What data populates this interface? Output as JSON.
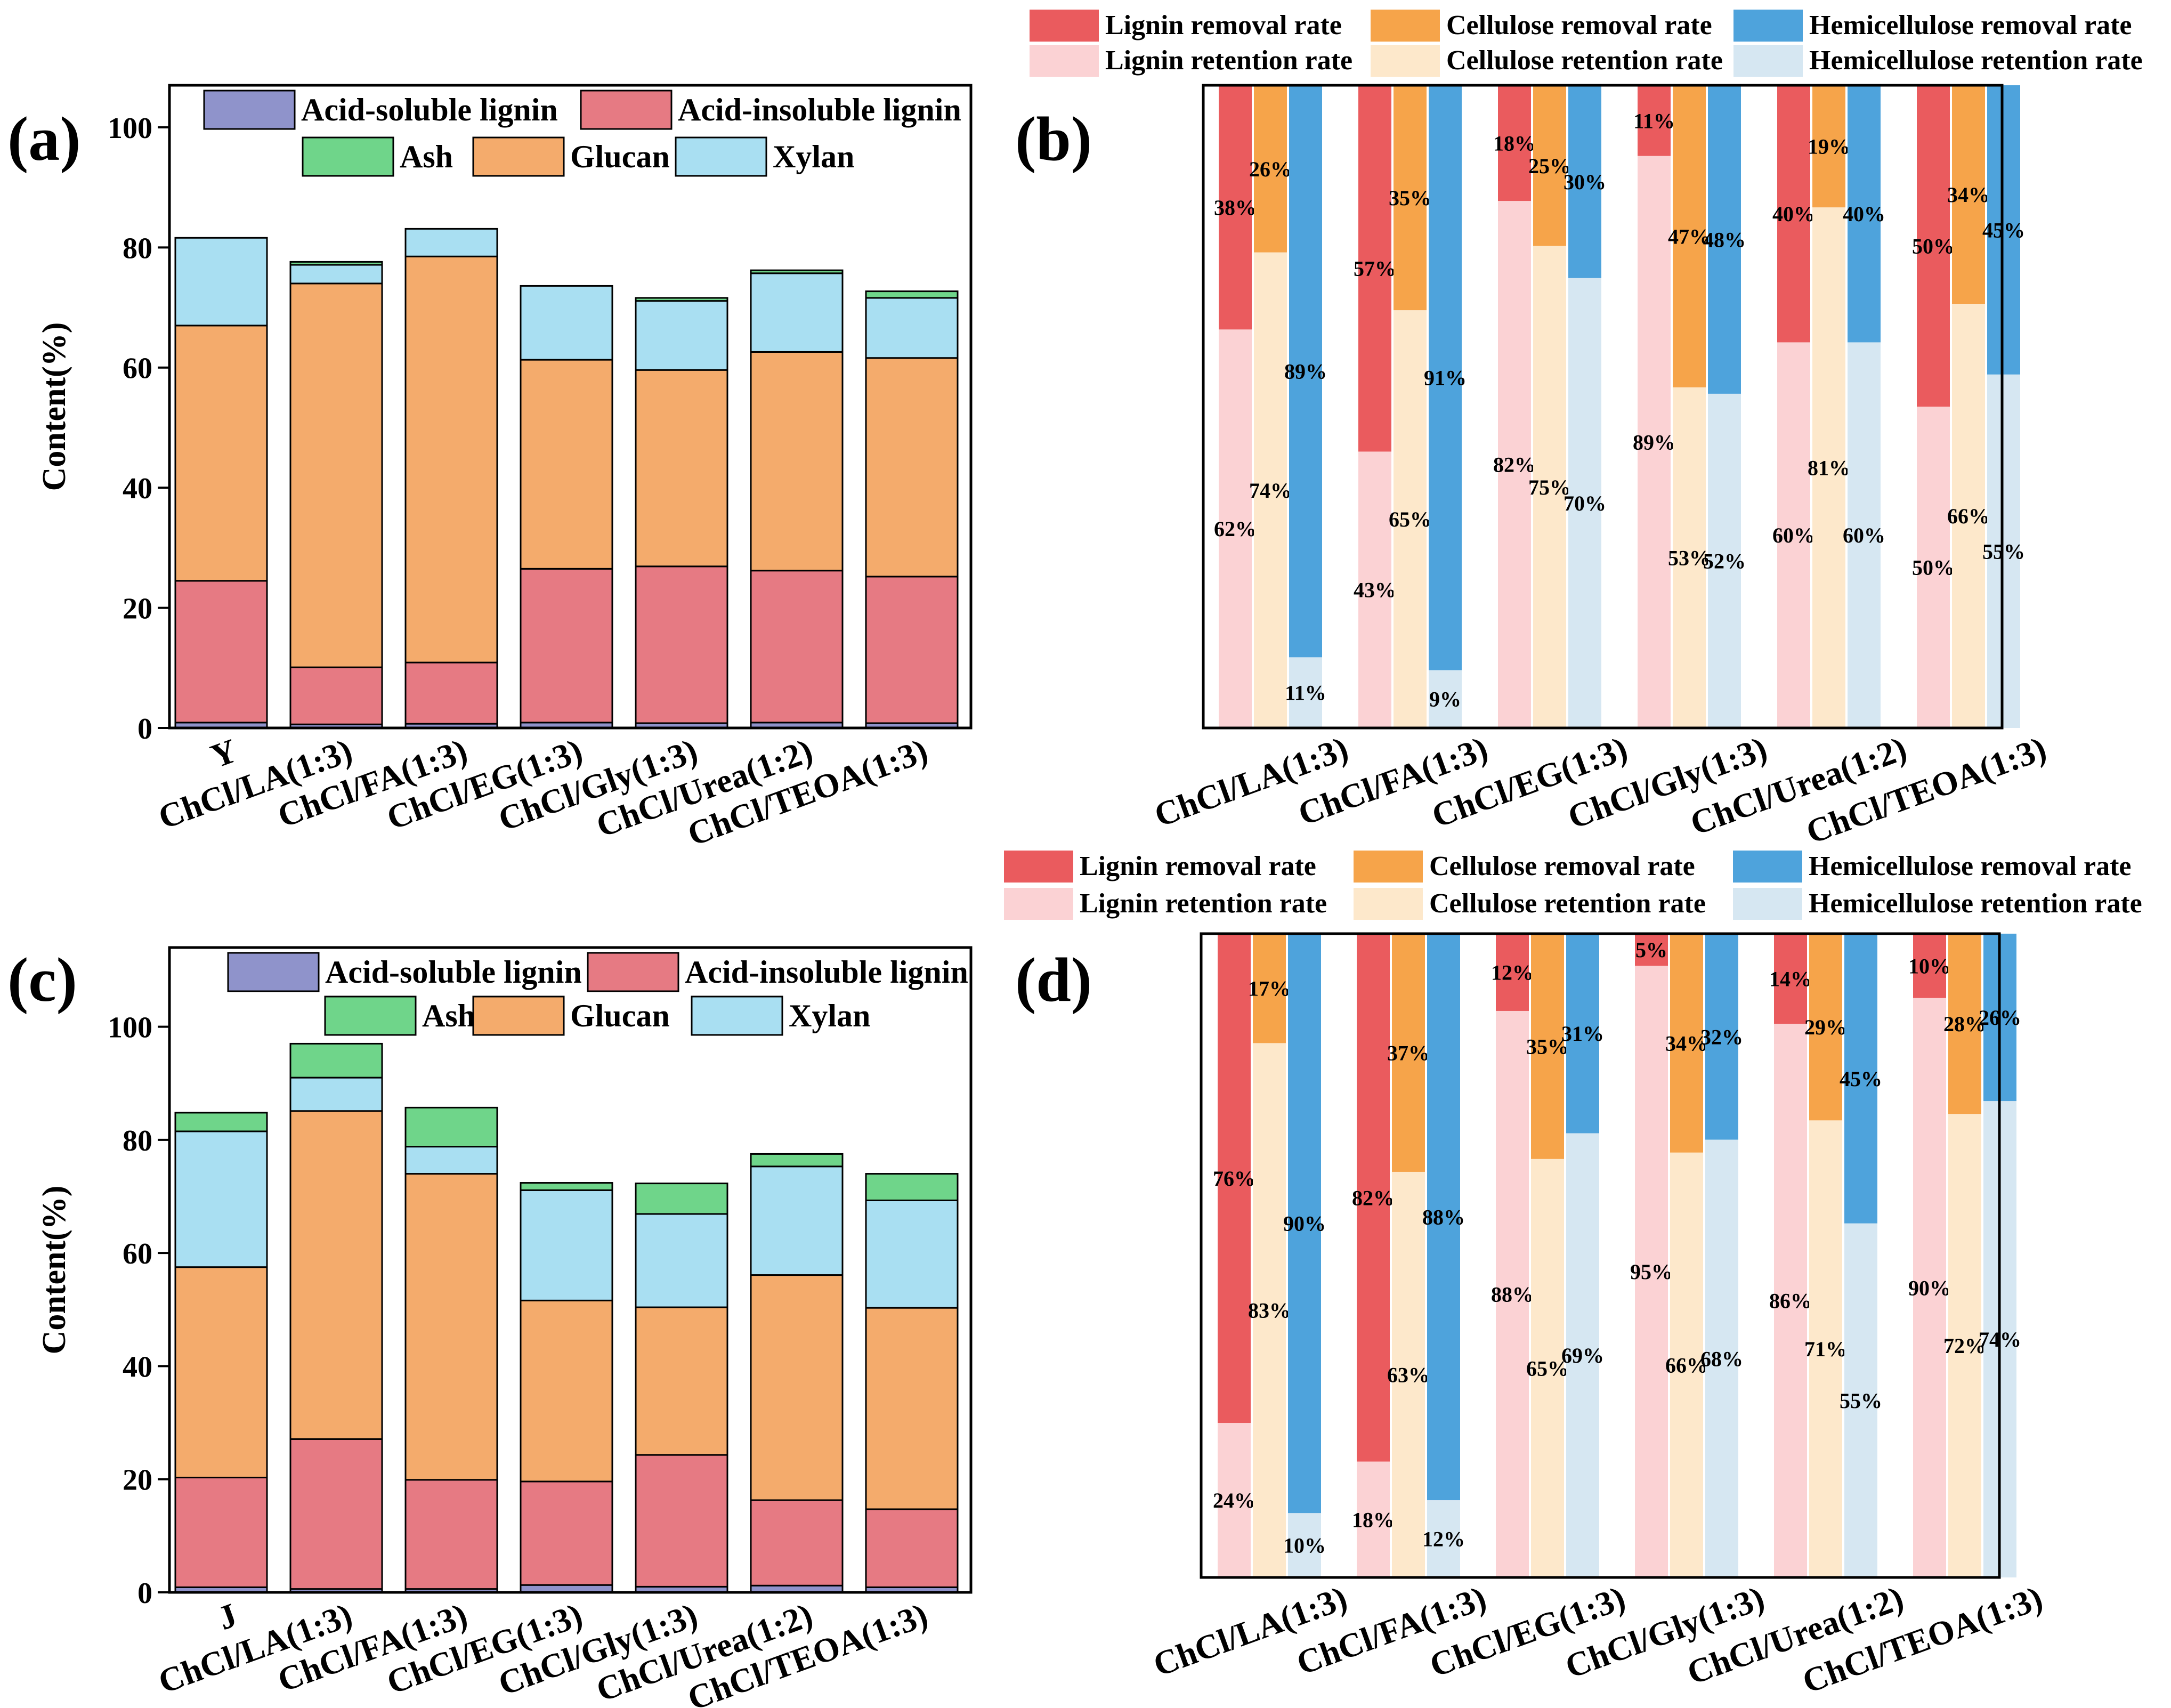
{
  "figure": {
    "components": [
      "Acid-soluble lignin",
      "Acid-insoluble lignin",
      "Ash",
      "Glucan",
      "Xylan"
    ],
    "rate_legend": [
      "Lignin removal rate",
      "Cellulose removal rate",
      "Hemicellulose removal rate",
      "Lignin retention rate",
      "Cellulose retention rate",
      "Hemicellulose retention rate"
    ],
    "colors": {
      "asl": "#8f93cb",
      "ail": "#e67a83",
      "ash": "#6fd58a",
      "glucan": "#f4ab6c",
      "xylan": "#a9dff2",
      "lignin_removal": "#ea5b5e",
      "cellulose_removal": "#f6a44a",
      "hemi_removal": "#4ea3dc",
      "lignin_retention": "#fbd2d4",
      "cellulose_retention": "#fde8cb",
      "hemi_retention": "#d6e7f2"
    }
  },
  "chart_data": [
    {
      "panel": "(a)",
      "type": "bar",
      "stacked": true,
      "ylabel": "Content(%)",
      "xlabel": "",
      "ylim": [
        0,
        107
      ],
      "yticks": [
        0,
        20,
        40,
        60,
        80,
        100
      ],
      "categories": [
        "Y",
        "ChCl/LA(1:3)",
        "ChCl/FA(1:3)",
        "ChCl/EG(1:3)",
        "ChCl/Gly(1:3)",
        "ChCl/Urea(1:2)",
        "ChCl/TEOA(1:3)"
      ],
      "series": [
        {
          "name": "Acid-soluble lignin",
          "values": [
            0.9,
            0.6,
            0.7,
            0.9,
            0.8,
            0.9,
            0.8
          ]
        },
        {
          "name": "Acid-insoluble lignin",
          "values": [
            23.6,
            9.5,
            10.2,
            25.6,
            26.1,
            25.3,
            24.4
          ]
        },
        {
          "name": "Ash",
          "values": [
            0.0,
            0.0,
            0.0,
            0.0,
            0.0,
            0.0,
            0.0
          ]
        },
        {
          "name": "Glucan",
          "values": [
            42.5,
            63.9,
            67.6,
            34.8,
            32.7,
            36.4,
            36.4
          ]
        },
        {
          "name": "Xylan",
          "values": [
            14.6,
            3.1,
            4.6,
            12.3,
            11.5,
            13.1,
            10.0
          ]
        },
        {
          "name": "Ash (top)",
          "values": [
            0.0,
            0.5,
            0.0,
            0.0,
            0.5,
            0.5,
            1.1
          ]
        }
      ]
    },
    {
      "panel": "(b)",
      "type": "bar",
      "stacked": true,
      "ylim": [
        0,
        100
      ],
      "categories": [
        "ChCl/LA(1:3)",
        "ChCl/FA(1:3)",
        "ChCl/EG(1:3)",
        "ChCl/Gly(1:3)",
        "ChCl/Urea(1:2)",
        "ChCl/TEOA(1:3)"
      ],
      "groups": [
        {
          "name": "Lignin",
          "retention": [
            62,
            43,
            82,
            89,
            60,
            50
          ],
          "removal": [
            38,
            57,
            18,
            11,
            40,
            50
          ]
        },
        {
          "name": "Cellulose",
          "retention": [
            74,
            65,
            75,
            53,
            81,
            66
          ],
          "removal": [
            26,
            35,
            25,
            47,
            19,
            34
          ]
        },
        {
          "name": "Hemicellulose",
          "retention": [
            11,
            9,
            70,
            52,
            60,
            55
          ],
          "removal": [
            89,
            91,
            30,
            48,
            40,
            45
          ]
        }
      ]
    },
    {
      "panel": "(c)",
      "type": "bar",
      "stacked": true,
      "ylabel": "Content(%)",
      "xlabel": "",
      "ylim": [
        0,
        114
      ],
      "yticks": [
        0,
        20,
        40,
        60,
        80,
        100
      ],
      "categories": [
        "J",
        "ChCl/LA(1:3)",
        "ChCl/FA(1:3)",
        "ChCl/EG(1:3)",
        "ChCl/Gly(1:3)",
        "ChCl/Urea(1:2)",
        "ChCl/TEOA(1:3)"
      ],
      "series": [
        {
          "name": "Acid-soluble lignin",
          "values": [
            0.9,
            0.6,
            0.6,
            1.3,
            1.0,
            1.2,
            0.9
          ]
        },
        {
          "name": "Acid-insoluble lignin",
          "values": [
            19.4,
            26.5,
            19.3,
            18.3,
            23.3,
            15.1,
            13.8
          ]
        },
        {
          "name": "Ash",
          "values": [
            0.0,
            0.0,
            0.0,
            0.0,
            0.0,
            0.0,
            0.0
          ]
        },
        {
          "name": "Glucan",
          "values": [
            37.2,
            58.0,
            54.1,
            32.0,
            26.1,
            39.8,
            35.6
          ]
        },
        {
          "name": "Xylan",
          "values": [
            24.0,
            5.9,
            4.8,
            19.5,
            16.5,
            19.2,
            19.0
          ]
        },
        {
          "name": "Ash (top)",
          "values": [
            3.3,
            6.0,
            6.9,
            1.3,
            5.4,
            2.2,
            4.7
          ]
        }
      ]
    },
    {
      "panel": "(d)",
      "type": "bar",
      "stacked": true,
      "ylim": [
        0,
        100
      ],
      "categories": [
        "ChCl/LA(1:3)",
        "ChCl/FA(1:3)",
        "ChCl/EG(1:3)",
        "ChCl/Gly(1:3)",
        "ChCl/Urea(1:2)",
        "ChCl/TEOA(1:3)"
      ],
      "groups": [
        {
          "name": "Lignin",
          "retention": [
            24,
            18,
            88,
            95,
            86,
            90
          ],
          "removal": [
            76,
            82,
            12,
            5,
            14,
            10
          ]
        },
        {
          "name": "Cellulose",
          "retention": [
            83,
            63,
            65,
            66,
            71,
            72
          ],
          "removal": [
            17,
            37,
            35,
            34,
            29,
            28
          ]
        },
        {
          "name": "Hemicellulose",
          "retention": [
            10,
            12,
            69,
            68,
            55,
            74
          ],
          "removal": [
            90,
            88,
            31,
            32,
            45,
            26
          ]
        }
      ]
    }
  ]
}
